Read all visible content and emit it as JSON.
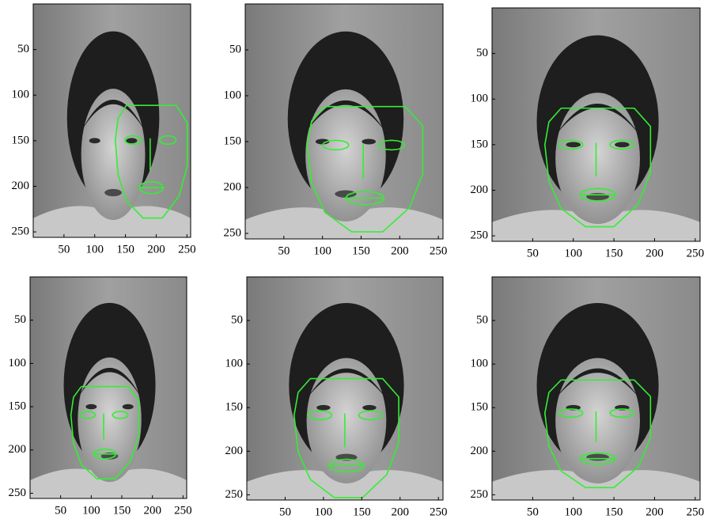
{
  "chart_data": [
    {
      "type": "image",
      "xlim": [
        0,
        256
      ],
      "ylim": [
        0,
        256
      ],
      "y_reversed": true,
      "xticks": [
        50,
        100,
        150,
        200,
        250
      ],
      "yticks": [
        50,
        100,
        150,
        200,
        250
      ]
    },
    {
      "type": "image",
      "xlim": [
        0,
        256
      ],
      "ylim": [
        0,
        256
      ],
      "y_reversed": true,
      "xticks": [
        50,
        100,
        150,
        200,
        250
      ],
      "yticks": [
        50,
        100,
        150,
        200,
        250
      ]
    },
    {
      "type": "image",
      "xlim": [
        0,
        256
      ],
      "ylim": [
        0,
        256
      ],
      "y_reversed": true,
      "xticks": [
        50,
        100,
        150,
        200,
        250
      ],
      "yticks": [
        50,
        100,
        150,
        200,
        250
      ]
    },
    {
      "type": "image",
      "xlim": [
        0,
        256
      ],
      "ylim": [
        0,
        256
      ],
      "y_reversed": true,
      "xticks": [
        50,
        100,
        150,
        200,
        250
      ],
      "yticks": [
        50,
        100,
        150,
        200,
        250
      ]
    },
    {
      "type": "image",
      "xlim": [
        0,
        256
      ],
      "ylim": [
        0,
        256
      ],
      "y_reversed": true,
      "xticks": [
        50,
        100,
        150,
        200,
        250
      ],
      "yticks": [
        50,
        100,
        150,
        200,
        250
      ]
    },
    {
      "type": "image",
      "xlim": [
        0,
        256
      ],
      "ylim": [
        0,
        256
      ],
      "y_reversed": true,
      "xticks": [
        50,
        100,
        150,
        200,
        250
      ],
      "yticks": [
        50,
        100,
        150,
        200,
        250
      ]
    }
  ]
}
